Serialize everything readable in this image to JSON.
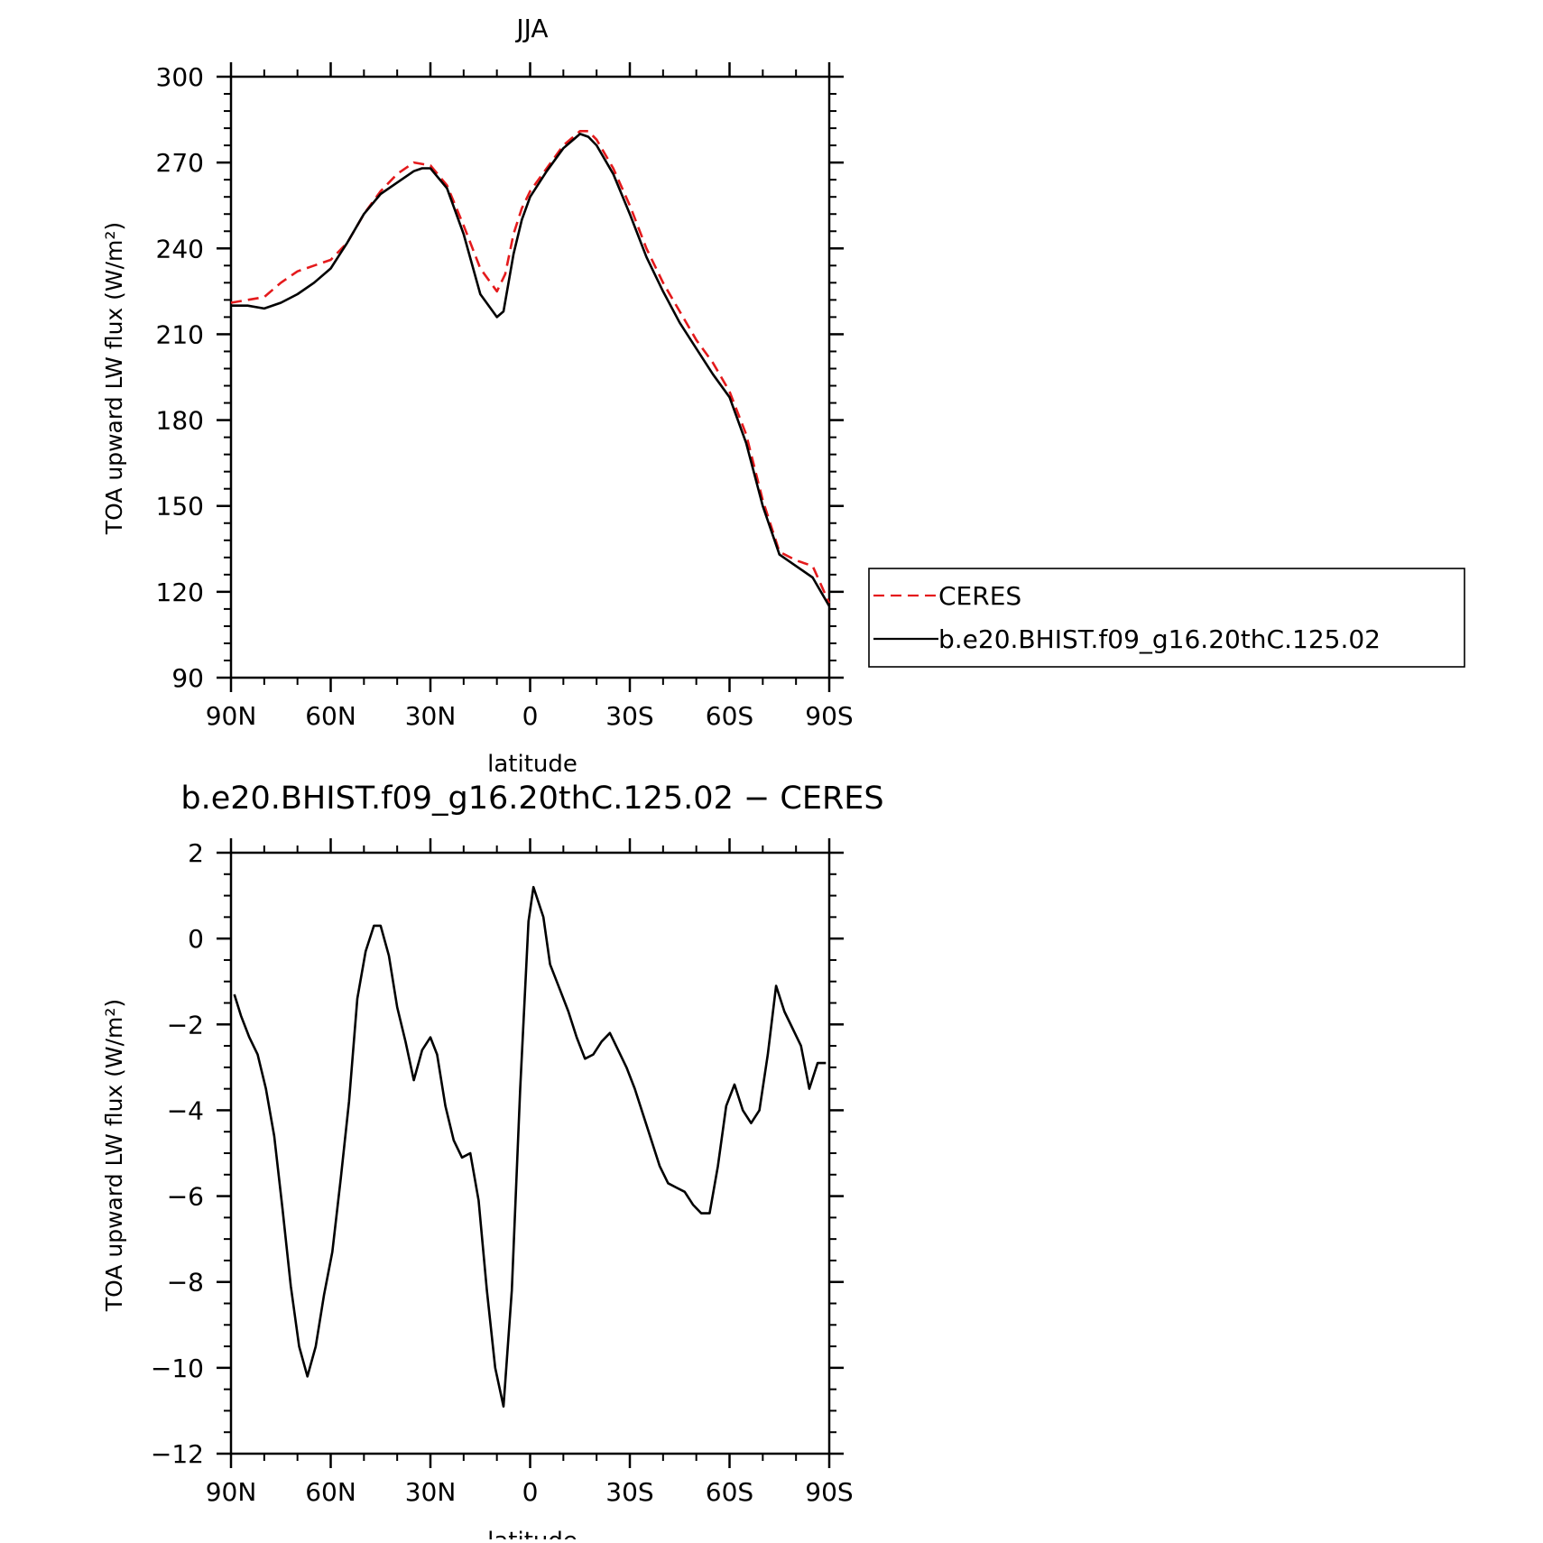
{
  "chart_data": [
    {
      "type": "line",
      "title": "JJA",
      "xlabel": "latitude",
      "ylabel": "TOA upward LW flux (W/m²)",
      "xlim": [
        90,
        -90
      ],
      "ylim": [
        90,
        300
      ],
      "x_ticks": [
        90,
        60,
        30,
        0,
        -30,
        -60,
        -90
      ],
      "x_tick_labels": [
        "90N",
        "60N",
        "30N",
        "0",
        "30S",
        "60S",
        "90S"
      ],
      "y_ticks": [
        90,
        120,
        150,
        180,
        210,
        240,
        270,
        300
      ],
      "y_tick_labels": [
        "90",
        "120",
        "150",
        "180",
        "210",
        "240",
        "270",
        "300"
      ],
      "grid": false,
      "legend": {
        "placement": "outside-right",
        "entries": [
          "CERES",
          "b.e20.BHIST.f09_g16.20thC.125.02"
        ]
      },
      "series": [
        {
          "name": "CERES",
          "color": "#e41a1c",
          "dash": "dashed",
          "x": [
            90,
            85,
            80,
            75,
            70,
            65,
            60,
            55,
            50,
            45,
            40,
            35,
            30,
            25,
            20,
            15,
            10,
            7.5,
            5,
            2.5,
            0,
            -5,
            -10,
            -15,
            -17.5,
            -20,
            -25,
            -30,
            -35,
            -40,
            -45,
            -50,
            -55,
            -60,
            -65,
            -70,
            -75,
            -80,
            -85,
            -90
          ],
          "values": [
            221,
            222,
            223,
            228,
            232,
            234,
            236,
            242,
            252,
            260,
            266,
            270,
            269,
            262,
            248,
            233,
            225,
            231,
            245,
            254,
            260,
            268,
            276,
            281,
            281,
            278,
            268,
            255,
            240,
            228,
            218,
            208,
            200,
            190,
            175,
            152,
            134,
            131,
            129,
            116
          ]
        },
        {
          "name": "b.e20.BHIST.f09_g16.20thC.125.02",
          "color": "#000000",
          "dash": "solid",
          "x": [
            90,
            85,
            80,
            75,
            70,
            65,
            60,
            55,
            50,
            45,
            40,
            35,
            32.5,
            30,
            25,
            20,
            15,
            10,
            8,
            5,
            2.5,
            0,
            -5,
            -10,
            -15,
            -17.5,
            -20,
            -25,
            -30,
            -35,
            -40,
            -45,
            -50,
            -55,
            -60,
            -65,
            -70,
            -75,
            -80,
            -85,
            -90
          ],
          "values": [
            220,
            220,
            219,
            221,
            224,
            228,
            233,
            242,
            252,
            259,
            263,
            267,
            268,
            268,
            261,
            245,
            224,
            216,
            218,
            238,
            250,
            258,
            267,
            275,
            280,
            279,
            276,
            266,
            252,
            237,
            225,
            214,
            205,
            196,
            188,
            172,
            150,
            133,
            129,
            125,
            115
          ]
        }
      ]
    },
    {
      "type": "line",
      "title": "b.e20.BHIST.f09_g16.20thC.125.02 − CERES",
      "xlabel": "latitude",
      "ylabel": "TOA upward LW flux (W/m²)",
      "xlim": [
        90,
        -90
      ],
      "ylim": [
        -12,
        2
      ],
      "x_ticks": [
        90,
        60,
        30,
        0,
        -30,
        -60,
        -90
      ],
      "x_tick_labels": [
        "90N",
        "60N",
        "30N",
        "0",
        "30S",
        "60S",
        "90S"
      ],
      "y_ticks": [
        2,
        0,
        -2,
        -4,
        -6,
        -8,
        -10,
        -12
      ],
      "y_tick_labels": [
        "2",
        "0",
        "−2",
        "−4",
        "−6",
        "−8",
        "−10",
        "−12"
      ],
      "grid": false,
      "series": [
        {
          "color": "#000000",
          "dash": "solid",
          "x": [
            89,
            87,
            84.5,
            82,
            79.5,
            77,
            74.5,
            72,
            69.5,
            67,
            64.5,
            62,
            59.5,
            57,
            54.5,
            52,
            49.5,
            47,
            45,
            42.5,
            40,
            37.5,
            35,
            32.5,
            30,
            28,
            25.5,
            23,
            20.5,
            18,
            15.5,
            13,
            10.5,
            8,
            5.5,
            3,
            0.5,
            -1,
            -4,
            -6,
            -9,
            -11.5,
            -14,
            -16.5,
            -19,
            -21.5,
            -24,
            -26.5,
            -29,
            -31.5,
            -34,
            -36.5,
            -39,
            -41.5,
            -44,
            -46.5,
            -49,
            -51.5,
            -54,
            -56.5,
            -59,
            -61.5,
            -64,
            -66.5,
            -69,
            -71.5,
            -74,
            -76.5,
            -79,
            -81.5,
            -84,
            -86.5,
            -89
          ],
          "values": [
            -1.3,
            -1.8,
            -2.3,
            -2.7,
            -3.5,
            -4.6,
            -6.3,
            -8.1,
            -9.5,
            -10.2,
            -9.5,
            -8.3,
            -7.3,
            -5.6,
            -3.8,
            -1.4,
            -0.3,
            0.3,
            0.3,
            -0.4,
            -1.6,
            -2.4,
            -3.3,
            -2.6,
            -2.3,
            -2.7,
            -3.9,
            -4.7,
            -5.1,
            -5.0,
            -6.1,
            -8.2,
            -10.0,
            -10.9,
            -8.2,
            -3.5,
            0.4,
            1.2,
            0.5,
            -0.6,
            -1.2,
            -1.7,
            -2.3,
            -2.8,
            -2.7,
            -2.4,
            -2.2,
            -2.6,
            -3.0,
            -3.5,
            -4.1,
            -4.7,
            -5.3,
            -5.7,
            -5.8,
            -5.9,
            -6.2,
            -6.4,
            -6.4,
            -5.3,
            -3.9,
            -3.4,
            -4.0,
            -4.3,
            -4.0,
            -2.7,
            -1.1,
            -1.7,
            -2.1,
            -2.5,
            -3.5,
            -2.9,
            -2.9
          ]
        }
      ]
    }
  ]
}
